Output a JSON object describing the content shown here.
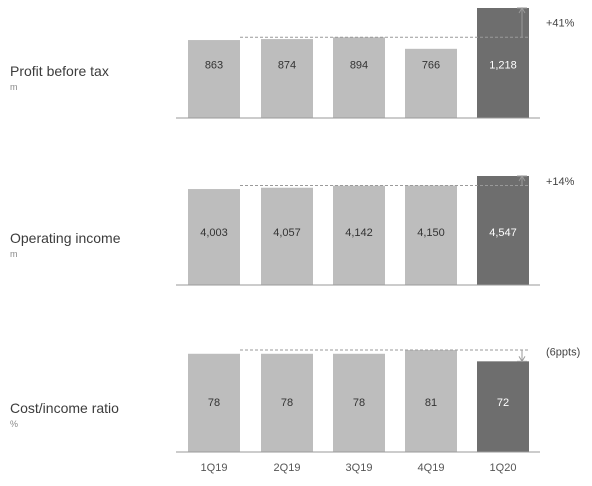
{
  "colors": {
    "bar": "#bdbdbd",
    "bar_highlight": "#6e6e6e",
    "baseline": "#9a9a9a",
    "ref_line": "#9a9a9a",
    "arrow": "#9a9a9a"
  },
  "chart_data": {
    "type": "bar",
    "categories": [
      "1Q19",
      "2Q19",
      "3Q19",
      "4Q19",
      "1Q20"
    ],
    "panels": [
      {
        "title": "Profit before tax",
        "unit": "m",
        "values": [
          863,
          874,
          894,
          766,
          1218
        ],
        "value_labels": [
          "863",
          "874",
          "894",
          "766",
          "1,218"
        ],
        "change_label": "+41%"
      },
      {
        "title": "Operating income",
        "unit": "m",
        "values": [
          4003,
          4057,
          4142,
          4150,
          4547
        ],
        "value_labels": [
          "4,003",
          "4,057",
          "4,142",
          "4,150",
          "4,547"
        ],
        "change_label": "+14%"
      },
      {
        "title": "Cost/income ratio",
        "unit": "%",
        "values": [
          78,
          78,
          78,
          81,
          72
        ],
        "value_labels": [
          "78",
          "78",
          "78",
          "81",
          "72"
        ],
        "change_label": "(6ppts)"
      }
    ]
  }
}
